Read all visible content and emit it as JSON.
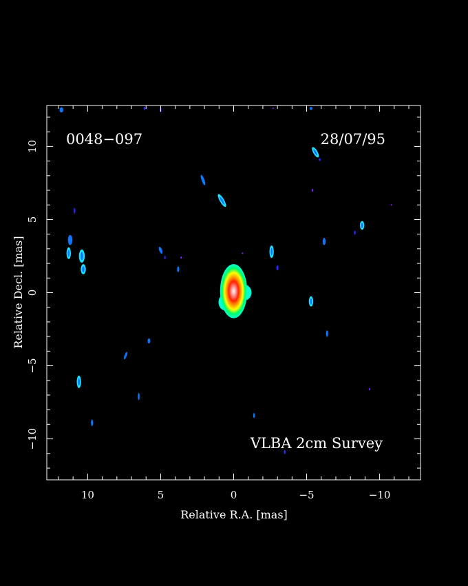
{
  "colors": {
    "background": "#000000",
    "frame": "#ffffff",
    "text": "#ffffff",
    "core_gradient": [
      "#00ffd5",
      "#00ff66",
      "#ffff00",
      "#ff9900",
      "#ff2200",
      "#ff8f8f",
      "#ffffff"
    ],
    "knot_bright": "#1ee0ff",
    "knot_mid": "#0a78ff",
    "knot_faint": "#2525ff",
    "knot_purple": "#8a1aff"
  },
  "chart_data": {
    "type": "heatmap",
    "title": "",
    "xlabel": "Relative R.A. [mas]",
    "ylabel": "Relative Decl. [mas]",
    "xlim": [
      12.8,
      -12.8
    ],
    "ylim": [
      -12.8,
      12.8
    ],
    "xticks": [
      10,
      5,
      0,
      -5,
      -10
    ],
    "yticks": [
      -10,
      -5,
      0,
      5,
      10
    ],
    "xtick_labels": [
      "10",
      "5",
      "0",
      "−5",
      "−10"
    ],
    "ytick_labels": [
      "−10",
      "−5",
      "0",
      "5",
      "10"
    ],
    "minor_tick_step": 1,
    "grid": false,
    "annotations": {
      "source": "0048−097",
      "date": "28/07/95",
      "survey": "VLBA 2cm Survey"
    },
    "core": {
      "ra": 0.0,
      "dec": 0.1,
      "extent_ra": [
        -1.4,
        1.6
      ],
      "extent_dec": [
        -1.8,
        1.9
      ]
    },
    "knots": [
      {
        "ra": 11.8,
        "dec": 12.5,
        "w": 0.25,
        "h": 0.35,
        "level": "mid"
      },
      {
        "ra": 6.1,
        "dec": 12.6,
        "w": 0.12,
        "h": 0.25,
        "level": "faint"
      },
      {
        "ra": 5.0,
        "dec": 12.5,
        "w": 0.12,
        "h": 0.3,
        "level": "faint"
      },
      {
        "ra": -2.7,
        "dec": 12.6,
        "w": 0.1,
        "h": 0.1,
        "level": "purple"
      },
      {
        "ra": -5.3,
        "dec": 12.6,
        "w": 0.2,
        "h": 0.2,
        "level": "mid"
      },
      {
        "ra": -5.6,
        "dec": 9.6,
        "w": 0.3,
        "h": 0.8,
        "level": "bright",
        "angle": -30
      },
      {
        "ra": -5.9,
        "dec": 9.1,
        "w": 0.12,
        "h": 0.2,
        "level": "faint"
      },
      {
        "ra": 2.1,
        "dec": 7.7,
        "w": 0.2,
        "h": 0.75,
        "level": "mid",
        "angle": -20
      },
      {
        "ra": 0.8,
        "dec": 6.3,
        "w": 0.3,
        "h": 1.0,
        "level": "bright",
        "angle": -30
      },
      {
        "ra": 10.9,
        "dec": 5.6,
        "w": 0.12,
        "h": 0.4,
        "level": "faint"
      },
      {
        "ra": -5.4,
        "dec": 7.0,
        "w": 0.08,
        "h": 0.2,
        "level": "purple"
      },
      {
        "ra": -10.8,
        "dec": 6.0,
        "w": 0.08,
        "h": 0.1,
        "level": "purple"
      },
      {
        "ra": -8.8,
        "dec": 4.6,
        "w": 0.3,
        "h": 0.6,
        "level": "bright"
      },
      {
        "ra": -8.3,
        "dec": 4.1,
        "w": 0.12,
        "h": 0.3,
        "level": "faint"
      },
      {
        "ra": -6.2,
        "dec": 3.5,
        "w": 0.2,
        "h": 0.5,
        "level": "mid"
      },
      {
        "ra": 11.2,
        "dec": 3.6,
        "w": 0.3,
        "h": 0.7,
        "level": "mid"
      },
      {
        "ra": 11.3,
        "dec": 2.7,
        "w": 0.3,
        "h": 0.8,
        "level": "bright"
      },
      {
        "ra": 10.4,
        "dec": 2.5,
        "w": 0.4,
        "h": 0.9,
        "level": "bright"
      },
      {
        "ra": 10.3,
        "dec": 1.6,
        "w": 0.35,
        "h": 0.7,
        "level": "bright"
      },
      {
        "ra": 5.0,
        "dec": 2.9,
        "w": 0.2,
        "h": 0.5,
        "level": "mid",
        "angle": -20
      },
      {
        "ra": 4.7,
        "dec": 2.4,
        "w": 0.1,
        "h": 0.25,
        "level": "faint"
      },
      {
        "ra": 3.6,
        "dec": 2.4,
        "w": 0.08,
        "h": 0.15,
        "level": "purple"
      },
      {
        "ra": 3.8,
        "dec": 1.6,
        "w": 0.15,
        "h": 0.4,
        "level": "mid"
      },
      {
        "ra": -0.6,
        "dec": 2.7,
        "w": 0.08,
        "h": 0.12,
        "level": "purple"
      },
      {
        "ra": -2.6,
        "dec": 2.8,
        "w": 0.3,
        "h": 0.85,
        "level": "bright"
      },
      {
        "ra": -3.0,
        "dec": 1.7,
        "w": 0.15,
        "h": 0.35,
        "level": "faint"
      },
      {
        "ra": -5.3,
        "dec": -0.6,
        "w": 0.3,
        "h": 0.7,
        "level": "bright"
      },
      {
        "ra": -6.4,
        "dec": -2.8,
        "w": 0.15,
        "h": 0.45,
        "level": "mid"
      },
      {
        "ra": 5.8,
        "dec": -3.3,
        "w": 0.18,
        "h": 0.35,
        "level": "mid"
      },
      {
        "ra": 7.4,
        "dec": -4.3,
        "w": 0.15,
        "h": 0.55,
        "level": "mid",
        "angle": 20
      },
      {
        "ra": 10.6,
        "dec": -6.1,
        "w": 0.3,
        "h": 0.85,
        "level": "bright"
      },
      {
        "ra": 6.5,
        "dec": -7.1,
        "w": 0.12,
        "h": 0.5,
        "level": "mid"
      },
      {
        "ra": 9.7,
        "dec": -8.9,
        "w": 0.15,
        "h": 0.45,
        "level": "mid"
      },
      {
        "ra": -9.3,
        "dec": -6.6,
        "w": 0.08,
        "h": 0.15,
        "level": "purple"
      },
      {
        "ra": -1.4,
        "dec": -8.4,
        "w": 0.12,
        "h": 0.35,
        "level": "mid"
      },
      {
        "ra": -3.5,
        "dec": -10.9,
        "w": 0.12,
        "h": 0.3,
        "level": "faint"
      }
    ]
  }
}
